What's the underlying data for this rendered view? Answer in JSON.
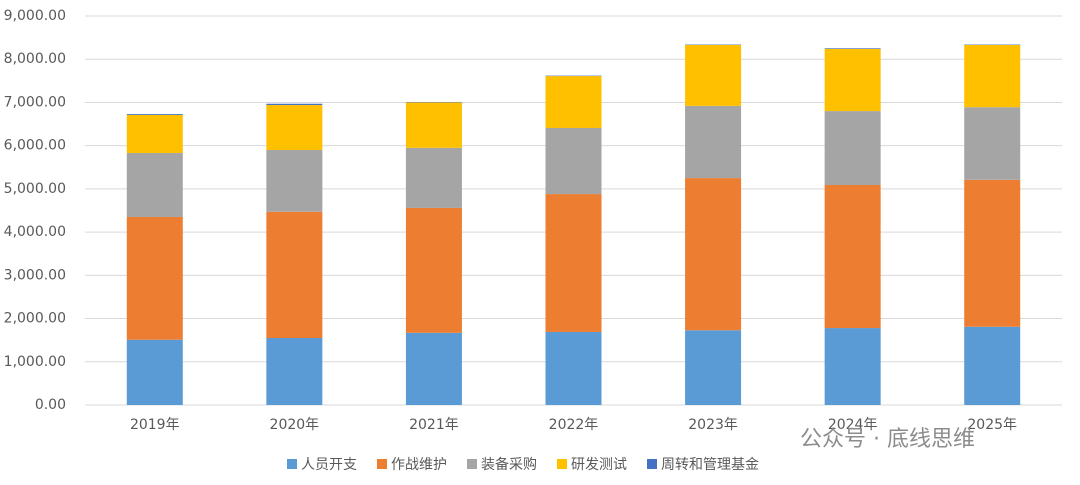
{
  "chart_data": {
    "type": "stacked_bar",
    "categories": [
      "2019年",
      "2020年",
      "2021年",
      "2022年",
      "2023年",
      "2024年",
      "2025年"
    ],
    "series": [
      {
        "name": "人员开支",
        "color": "#5b9bd5",
        "values": [
          1510,
          1550,
          1670,
          1690,
          1730,
          1780,
          1810
        ]
      },
      {
        "name": "作战维护",
        "color": "#ed7d31",
        "values": [
          2840,
          2920,
          2890,
          3190,
          3520,
          3310,
          3400
        ]
      },
      {
        "name": "装备采购",
        "color": "#a5a5a5",
        "values": [
          1480,
          1430,
          1390,
          1530,
          1670,
          1710,
          1680
        ]
      },
      {
        "name": "研发测试",
        "color": "#ffc000",
        "values": [
          880,
          1040,
          1050,
          1200,
          1410,
          1440,
          1440
        ]
      },
      {
        "name": "周转和管理基金",
        "color": "#4472c4",
        "values": [
          20,
          30,
          10,
          10,
          10,
          15,
          10
        ]
      }
    ],
    "ylim": [
      0,
      9000
    ],
    "yticks": [
      {
        "value": 0,
        "label": "0.00"
      },
      {
        "value": 1000,
        "label": "1,000.00"
      },
      {
        "value": 2000,
        "label": "2,000.00"
      },
      {
        "value": 3000,
        "label": "3,000.00"
      },
      {
        "value": 4000,
        "label": "4,000.00"
      },
      {
        "value": 5000,
        "label": "5,000.00"
      },
      {
        "value": 6000,
        "label": "6,000.00"
      },
      {
        "value": 7000,
        "label": "7,000.00"
      },
      {
        "value": 8000,
        "label": "8,000.00"
      },
      {
        "value": 9000,
        "label": "9,000.00"
      }
    ],
    "grid": true,
    "legend": "bottom",
    "watermark": "公众号 · 底线思维"
  }
}
